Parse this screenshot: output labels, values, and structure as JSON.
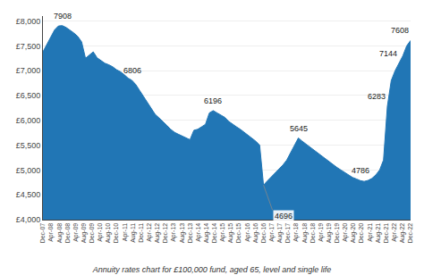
{
  "chart_data": {
    "type": "area",
    "title": "Annuity rates chart for £100,000 fund, aged 65, level and single life",
    "color": "#2176b5",
    "values": [
      7380,
      7520,
      7680,
      7820,
      7900,
      7908,
      7870,
      7820,
      7760,
      7690,
      7580,
      7250,
      7320,
      7380,
      7260,
      7200,
      7150,
      7120,
      7080,
      7020,
      6980,
      6920,
      6850,
      6806,
      6720,
      6600,
      6480,
      6350,
      6220,
      6120,
      6050,
      5980,
      5900,
      5820,
      5760,
      5720,
      5680,
      5640,
      5610,
      5800,
      5820,
      5870,
      5920,
      6150,
      6196,
      6150,
      6100,
      6060,
      5980,
      5920,
      5870,
      5820,
      5760,
      5700,
      5640,
      5580,
      5500,
      4696,
      4780,
      4860,
      4940,
      5020,
      5100,
      5200,
      5350,
      5480,
      5645,
      5580,
      5520,
      5460,
      5400,
      5340,
      5280,
      5220,
      5160,
      5100,
      5050,
      5000,
      4950,
      4900,
      4850,
      4820,
      4786,
      4770,
      4790,
      4830,
      4900,
      5000,
      5200,
      6283,
      6800,
      7000,
      7144,
      7300,
      7500,
      7608
    ],
    "xlim": [
      0,
      95
    ],
    "xticks": [
      {
        "value": 0,
        "label": "Dec-07"
      },
      {
        "value": 2.111111,
        "label": "Apr-08"
      },
      {
        "value": 4.222222,
        "label": "Aug-08"
      },
      {
        "value": 6.333333,
        "label": "Dec-08"
      },
      {
        "value": 8.444444,
        "label": "Apr-09"
      },
      {
        "value": 10.555556,
        "label": "Aug-09"
      },
      {
        "value": 12.666667,
        "label": "Dec-09"
      },
      {
        "value": 14.777778,
        "label": "Apr-10"
      },
      {
        "value": 16.888889,
        "label": "Aug-10"
      },
      {
        "value": 19,
        "label": "Dec-10"
      },
      {
        "value": 21.111111,
        "label": "Apr-11"
      },
      {
        "value": 23.222222,
        "label": "Aug-11"
      },
      {
        "value": 25.333333,
        "label": "Dec-11"
      },
      {
        "value": 27.444444,
        "label": "Apr-12"
      },
      {
        "value": 29.555556,
        "label": "Aug-12"
      },
      {
        "value": 31.666667,
        "label": "Dec-12"
      },
      {
        "value": 33.777778,
        "label": "Apr-13"
      },
      {
        "value": 35.888889,
        "label": "Aug-13"
      },
      {
        "value": 38,
        "label": "Dec-13"
      },
      {
        "value": 40.111111,
        "label": "Apr-14"
      },
      {
        "value": 42.222222,
        "label": "Aug-14"
      },
      {
        "value": 44.333333,
        "label": "Dec-14"
      },
      {
        "value": 46.444444,
        "label": "Apr-15"
      },
      {
        "value": 48.555556,
        "label": "Aug-15"
      },
      {
        "value": 50.666667,
        "label": "Dec-15"
      },
      {
        "value": 52.777778,
        "label": "Apr-16"
      },
      {
        "value": 54.888889,
        "label": "Aug-16"
      },
      {
        "value": 57,
        "label": "Dec-16"
      },
      {
        "value": 59.111111,
        "label": "Apr-17"
      },
      {
        "value": 61.222222,
        "label": "Aug-17"
      },
      {
        "value": 63.333333,
        "label": "Dec-17"
      },
      {
        "value": 65.444444,
        "label": "Apr-18"
      },
      {
        "value": 67.555556,
        "label": "Aug-18"
      },
      {
        "value": 69.666667,
        "label": "Dec-18"
      },
      {
        "value": 71.777778,
        "label": "Apr-19"
      },
      {
        "value": 73.888889,
        "label": "Aug-19"
      },
      {
        "value": 76,
        "label": "Dec-19"
      },
      {
        "value": 78.111111,
        "label": "Apr-20"
      },
      {
        "value": 80.222222,
        "label": "Aug-20"
      },
      {
        "value": 82.333333,
        "label": "Dec-20"
      },
      {
        "value": 84.444444,
        "label": "Apr-21"
      },
      {
        "value": 86.555556,
        "label": "Aug-21"
      },
      {
        "value": 88.666667,
        "label": "Dec-21"
      },
      {
        "value": 90.777778,
        "label": "Apr-22"
      },
      {
        "value": 92.888889,
        "label": "Aug-22"
      },
      {
        "value": 95,
        "label": "Dec-22"
      }
    ],
    "ylim": [
      4000,
      8100
    ],
    "yticks": [
      {
        "value": 4000,
        "label": "£4,000"
      },
      {
        "value": 4500,
        "label": "£4,500"
      },
      {
        "value": 5000,
        "label": "£5,000"
      },
      {
        "value": 5500,
        "label": "£5,500"
      },
      {
        "value": 6000,
        "label": "£6,000"
      },
      {
        "value": 6500,
        "label": "£6,500"
      },
      {
        "value": 7000,
        "label": "£7,000"
      },
      {
        "value": 7500,
        "label": "£7,500"
      },
      {
        "value": 8000,
        "label": "£8,000"
      }
    ],
    "grid": "y",
    "annotations": [
      {
        "text": "7908",
        "x": 5,
        "y": 7908
      },
      {
        "text": "6806",
        "x": 23,
        "y": 6806
      },
      {
        "text": "6196",
        "x": 44,
        "y": 6196
      },
      {
        "text": "4696",
        "x": 57,
        "y": 4696
      },
      {
        "text": "5645",
        "x": 66,
        "y": 5645
      },
      {
        "text": "4786",
        "x": 82,
        "y": 4786
      },
      {
        "text": "6283",
        "x": 89,
        "y": 6283
      },
      {
        "text": "7144",
        "x": 92,
        "y": 7144
      },
      {
        "text": "7608",
        "x": 95,
        "y": 7608
      }
    ]
  }
}
